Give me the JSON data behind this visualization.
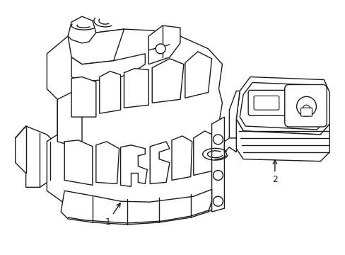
{
  "background_color": "#ffffff",
  "line_color": "#1a1a1a",
  "line_width": 1.0,
  "fig_width": 4.89,
  "fig_height": 3.6,
  "dpi": 100,
  "label1": "1",
  "label2": "2"
}
